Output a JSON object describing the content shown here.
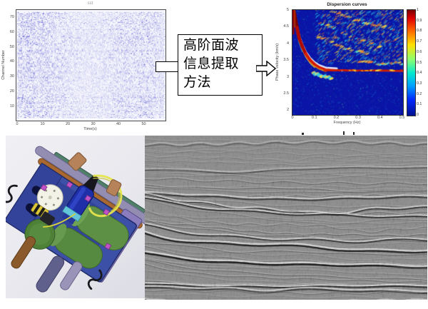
{
  "seismic_record": {
    "title": "sst",
    "xlabel": "Time(s)",
    "ylabel": "Channel Number",
    "x_ticks": [
      "0",
      "10",
      "20",
      "30",
      "40",
      "50"
    ],
    "y_ticks": [
      "70",
      "60",
      "50",
      "40",
      "30",
      "20",
      "10"
    ]
  },
  "method_box": {
    "lines": [
      "高阶面波",
      "信息提取",
      "方法"
    ]
  },
  "dispersion": {
    "title": "Dispersion curves",
    "xlabel": "Frequency (Hz)",
    "ylabel": "Phase velocity (km/s)",
    "x_ticks": [
      "0",
      "0.1",
      "0.2",
      "0.3",
      "0.4",
      "0.5"
    ],
    "y_ticks": [
      "5",
      "4.5",
      "4",
      "3.5",
      "3",
      "2.5",
      "2"
    ],
    "colorbar_ticks": [
      "1",
      "0.9",
      "0.8",
      "0.7",
      "0.6",
      "0.5",
      "0.4",
      "0.3",
      "0.2",
      "0.1",
      "0"
    ]
  },
  "colors": {
    "trace_blue": "#2a2ac4",
    "heatmap_background": "#0a14a6",
    "curve_red": "#c51000",
    "cad_background": "#e9e9ee",
    "seismic_gray": "#8f8f8f"
  },
  "chart_data": [
    {
      "type": "heatmap",
      "title": "sst",
      "xlabel": "Time(s)",
      "ylabel": "Channel Number",
      "x_ticks": [
        0,
        10,
        20,
        30,
        40,
        50
      ],
      "y_ticks": [
        10,
        20,
        30,
        40,
        50,
        60,
        70
      ],
      "xlim": [
        0,
        60
      ],
      "ylim": [
        0,
        80
      ],
      "description": "Dense blue multichannel ambient-noise seismic record, ~75 noisy horizontal traces on white background"
    },
    {
      "type": "heatmap",
      "title": "Dispersion curves",
      "xlabel": "Frequency (Hz)",
      "ylabel": "Phase velocity (km/s)",
      "xlim": [
        0,
        0.5
      ],
      "ylim": [
        2,
        5
      ],
      "colorbar_range": [
        0,
        1
      ],
      "colormap": "jet",
      "legend_position": "colorbar-right",
      "series": [
        {
          "name": "fundamental-mode dispersion curve",
          "x": [
            0.005,
            0.01,
            0.02,
            0.03,
            0.045,
            0.06,
            0.08,
            0.1,
            0.12,
            0.15,
            0.2,
            0.3,
            0.4,
            0.5
          ],
          "y": [
            5.0,
            4.85,
            4.5,
            4.2,
            3.95,
            3.75,
            3.57,
            3.45,
            3.37,
            3.3,
            3.28,
            3.27,
            3.26,
            3.25
          ]
        }
      ],
      "annotations": [
        "scattered higher-mode energy streaks (yellow/cyan) in upper-right of panel",
        "dark blue low-energy background"
      ]
    }
  ]
}
